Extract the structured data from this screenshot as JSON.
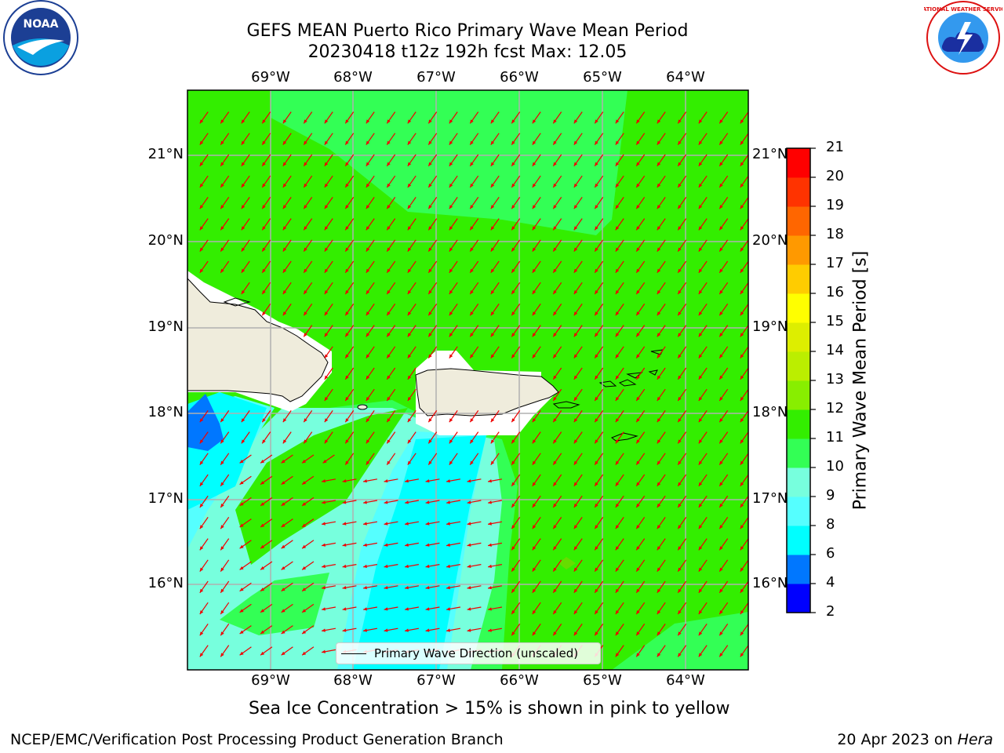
{
  "title": {
    "line1": "GEFS MEAN Puerto Rico Primary Wave Mean Period",
    "line2": "20230418 t12z 192h fcst   Max: 12.05"
  },
  "logos": {
    "noaa_text": "NOAA",
    "nws_text": "NATIONAL WEATHER SERVICE"
  },
  "map": {
    "lon_labels": [
      "69°W",
      "68°W",
      "67°W",
      "66°W",
      "65°W",
      "64°W"
    ],
    "lat_labels": [
      "21°N",
      "20°N",
      "19°N",
      "18°N",
      "17°N",
      "16°N"
    ],
    "legend_label": "Primary Wave Direction (unscaled)",
    "colors": {
      "green": "#33ee00",
      "light_green": "#33ff55",
      "aqua": "#77ffdd",
      "light_cyan": "#55ffff",
      "cyan": "#00ffff",
      "blue": "#0077ff",
      "land": "#efecdc",
      "arrow": "#ee0000",
      "grid": "#b0b0b0"
    }
  },
  "colorbar": {
    "label": "Primary Wave Mean Period [s]",
    "ticks": [
      "2",
      "4",
      "6",
      "8",
      "9",
      "10",
      "11",
      "12",
      "13",
      "14",
      "15",
      "16",
      "17",
      "18",
      "19",
      "20",
      "21"
    ],
    "colors": [
      "#0000ff",
      "#0077ff",
      "#00ffff",
      "#55ffff",
      "#77ffdd",
      "#33ff55",
      "#33ee00",
      "#88ee00",
      "#bbee00",
      "#ddee00",
      "#ffff00",
      "#ffcc00",
      "#ff9900",
      "#ff6600",
      "#ff3300",
      "#ff0000"
    ]
  },
  "caption": "Sea Ice Concentration > 15% is shown in pink to yellow",
  "footer": {
    "left": "NCEP/EMC/Verification Post Processing Product Generation Branch",
    "right_prefix": "20 Apr 2023 on ",
    "right_italic": "Hera"
  }
}
